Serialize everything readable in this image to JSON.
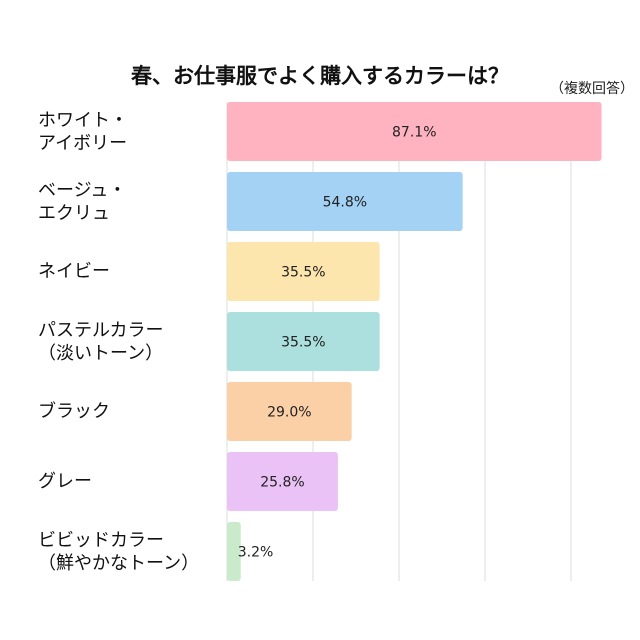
{
  "chart_data": {
    "type": "bar",
    "orientation": "horizontal",
    "title": "春、お仕事服でよく購入するカラーは？",
    "subtitle": "（複数回答）",
    "categories": [
      "ホワイト・\nアイボリー",
      "ベージュ・\nエクリュ",
      "ネイビー",
      "パステルカラー\n（淡いトーン）",
      "ブラック",
      "グレー",
      "ビビッドカラー\n（鮮やかなトーン）"
    ],
    "values": [
      87.1,
      54.8,
      35.5,
      35.5,
      29.0,
      25.8,
      3.2
    ],
    "value_labels": [
      "87.1%",
      "54.8%",
      "35.5%",
      "35.5%",
      "29.0%",
      "25.8%",
      "3.2%"
    ],
    "colors": [
      "#ffb3c1",
      "#a3d2f5",
      "#fde6ae",
      "#abe0df",
      "#fbd0a6",
      "#ebc2f5",
      "#c9ebcc"
    ],
    "xlim": [
      0,
      100
    ],
    "grid": true,
    "grid_step": 20,
    "legend": "none"
  }
}
